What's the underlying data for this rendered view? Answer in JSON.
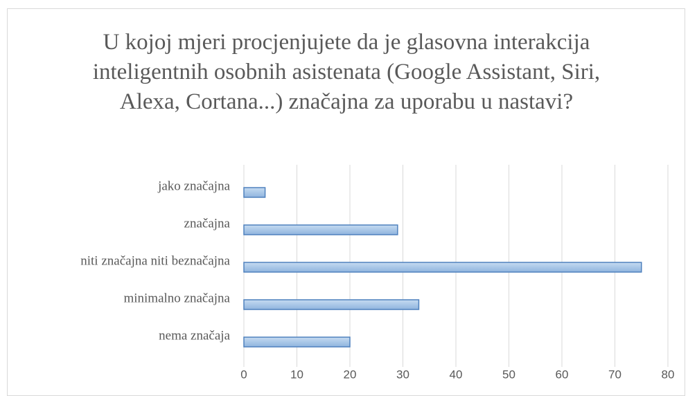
{
  "chart_data": {
    "type": "barh",
    "title": "U kojoj mjeri procjenjujete da je glasovna interakcija inteligentnih osobnih asistenata (Google Assistant, Siri, Alexa, Cortana...) značajna za uporabu u nastavi?",
    "categories": [
      "jako značajna",
      "značajna",
      "niti značajna niti beznačajna",
      "minimalno značajna",
      "nema značaja"
    ],
    "values": [
      4,
      29,
      75,
      33,
      20
    ],
    "color": "#9dc3e6",
    "xlim": [
      0,
      80
    ],
    "xticks": [
      0,
      10,
      20,
      30,
      40,
      50,
      60,
      70,
      80
    ],
    "grid": true
  }
}
